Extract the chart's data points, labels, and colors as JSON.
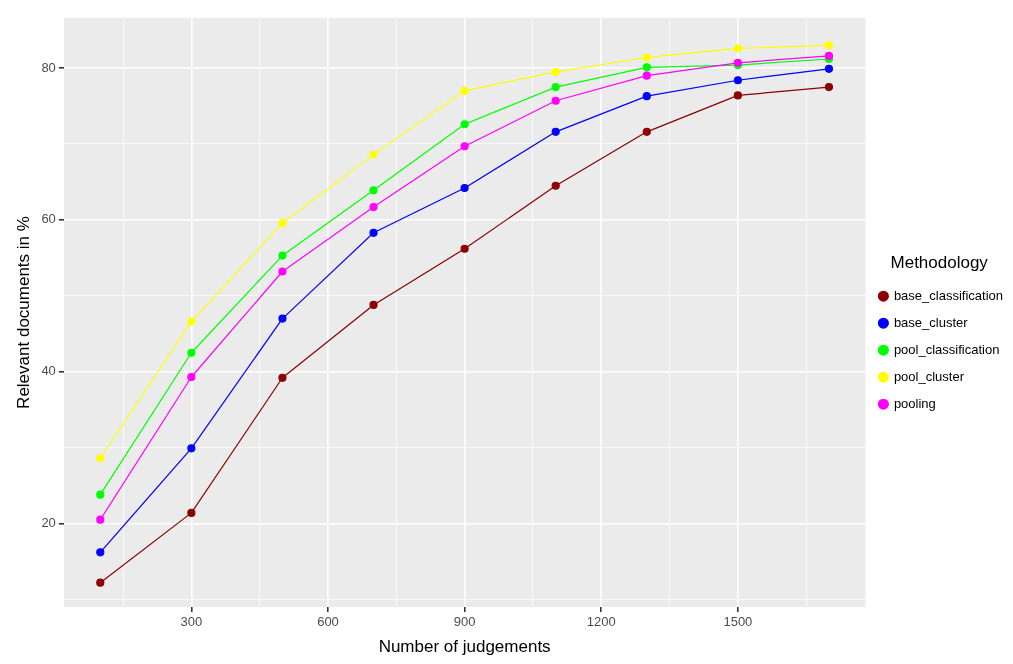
{
  "chart_data": {
    "type": "line",
    "xlabel": "Number of judgements",
    "ylabel": "Relevant documents in %",
    "legend_title": "Methodology",
    "legend": "right",
    "grid": true,
    "marker": "circle",
    "line_style": "solid",
    "x": [
      100,
      300,
      500,
      700,
      900,
      1100,
      1300,
      1500,
      1700
    ],
    "xlim": [
      20,
      1780
    ],
    "ylim": [
      9,
      86.6
    ],
    "xticks": [
      {
        "value": 150,
        "label": null
      },
      300,
      {
        "value": 450,
        "label": null
      },
      600,
      {
        "value": 750,
        "label": null
      },
      900,
      {
        "value": 1050,
        "label": null
      },
      1200,
      {
        "value": 1350,
        "label": null
      },
      1500,
      {
        "value": 1650,
        "label": null
      }
    ],
    "yticks": [
      {
        "value": 10,
        "label": null
      },
      20,
      {
        "value": 30,
        "label": null
      },
      40,
      {
        "value": 50,
        "label": null
      },
      60,
      {
        "value": 70,
        "label": null
      },
      80
    ],
    "series": [
      {
        "name": "base_classification",
        "color": "#8b0000",
        "values": [
          12.2,
          21.4,
          39.2,
          48.8,
          56.2,
          64.5,
          71.6,
          76.4,
          77.5
        ]
      },
      {
        "name": "base_cluster",
        "color": "#0000ff",
        "values": [
          16.2,
          29.9,
          47.0,
          58.3,
          64.2,
          71.6,
          76.3,
          78.4,
          79.9
        ]
      },
      {
        "name": "pool_classification",
        "color": "#00ff00",
        "values": [
          23.8,
          42.5,
          55.3,
          63.9,
          72.6,
          77.5,
          80.1,
          80.4,
          81.2
        ]
      },
      {
        "name": "pool_cluster",
        "color": "#ffff00",
        "values": [
          28.6,
          46.6,
          59.6,
          68.6,
          77.0,
          79.5,
          81.4,
          82.6,
          83.0
        ]
      },
      {
        "name": "pooling",
        "color": "#ff00ff",
        "values": [
          20.5,
          39.3,
          53.2,
          61.7,
          69.7,
          75.7,
          79.0,
          80.7,
          81.6
        ]
      }
    ]
  }
}
